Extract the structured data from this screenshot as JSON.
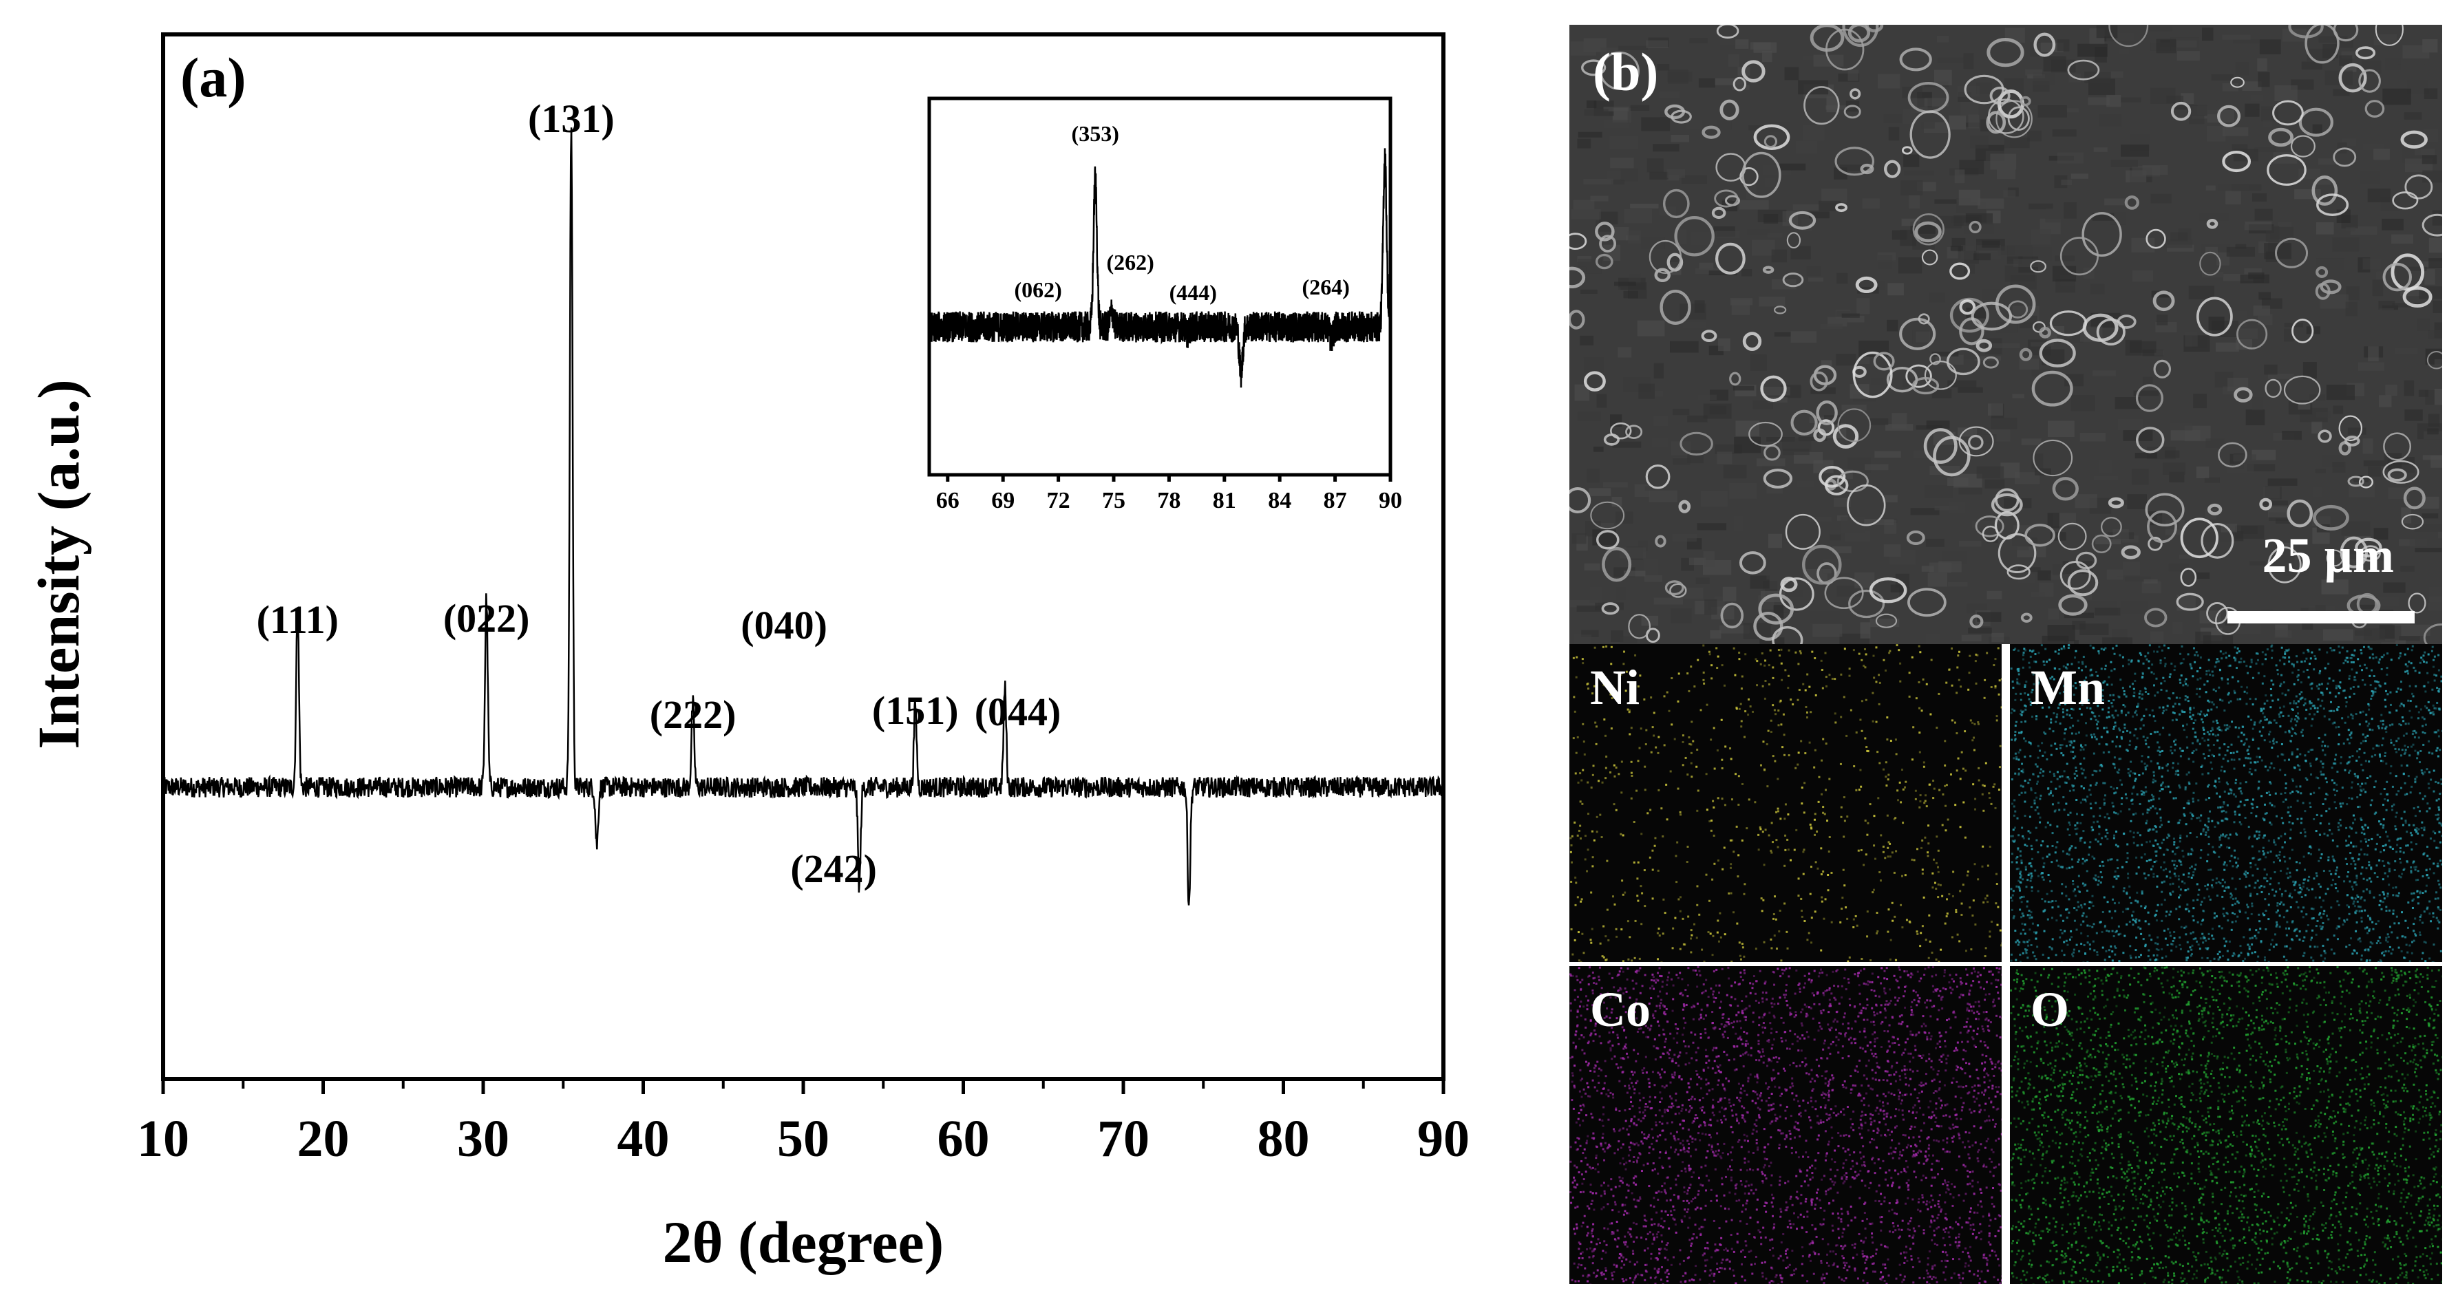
{
  "chart_data": [
    {
      "panel": "(a)",
      "type": "line",
      "xlabel": "2θ (degree)",
      "ylabel": "Intensity (a.u.)",
      "xlim": [
        10,
        90
      ],
      "xticks": [
        "10",
        "20",
        "30",
        "40",
        "50",
        "60",
        "70",
        "80",
        "90"
      ],
      "ylim": [
        0,
        1
      ],
      "grid": false,
      "series": [
        {
          "peaks": [
            {
              "x": 18.4,
              "y": 0.4
            },
            {
              "x": 30.2,
              "y": 0.41
            },
            {
              "x": 35.5,
              "y": 0.98
            },
            {
              "x": 37.1,
              "y": 0.11
            },
            {
              "x": 43.1,
              "y": 0.28
            },
            {
              "x": 53.5,
              "y": 0.06
            },
            {
              "x": 57.0,
              "y": 0.28
            },
            {
              "x": 62.6,
              "y": 0.3
            },
            {
              "x": 74.1,
              "y": 0.04
            }
          ],
          "baseline": 0.18
        }
      ],
      "annotations": [
        {
          "label": "(111)",
          "x": 18.4
        },
        {
          "label": "(022)",
          "x": 30.2
        },
        {
          "label": "(131)",
          "x": 35.5
        },
        {
          "label": "(040)",
          "x": 48.8
        },
        {
          "label": "(222)",
          "x": 43.1
        },
        {
          "label": "(242)",
          "x": 51.9
        },
        {
          "label": "(151)",
          "x": 57.0
        },
        {
          "label": "(044)",
          "x": 63.4
        }
      ]
    },
    {
      "panel": "inset",
      "type": "line",
      "xlim": [
        65,
        90
      ],
      "xticks": [
        "66",
        "69",
        "72",
        "75",
        "78",
        "81",
        "84",
        "87",
        "90"
      ],
      "grid": false,
      "series": [
        {
          "peaks": [
            {
              "x": 70.9,
              "y": 0.3
            },
            {
              "x": 74.0,
              "y": 0.78
            },
            {
              "x": 74.9,
              "y": 0.35
            },
            {
              "x": 79.0,
              "y": 0.28
            },
            {
              "x": 81.9,
              "y": 0.15
            },
            {
              "x": 86.8,
              "y": 0.26
            },
            {
              "x": 89.7,
              "y": 0.85
            }
          ],
          "baseline": 0.3
        }
      ],
      "annotations": [
        {
          "label": "(062)",
          "x": 70.9
        },
        {
          "label": "(353)",
          "x": 74.0
        },
        {
          "label": "(262)",
          "x": 75.9
        },
        {
          "label": "(444)",
          "x": 79.3
        },
        {
          "label": "(264)",
          "x": 86.5
        }
      ]
    }
  ],
  "sem": {
    "panel": "(b)",
    "scale_label": "25 µm",
    "maps": [
      {
        "label": "Ni",
        "color": "#c8c23a"
      },
      {
        "label": "Mn",
        "color": "#2aa0b0"
      },
      {
        "label": "Co",
        "color": "#a02aa8"
      },
      {
        "label": "O",
        "color": "#22a030"
      }
    ]
  }
}
